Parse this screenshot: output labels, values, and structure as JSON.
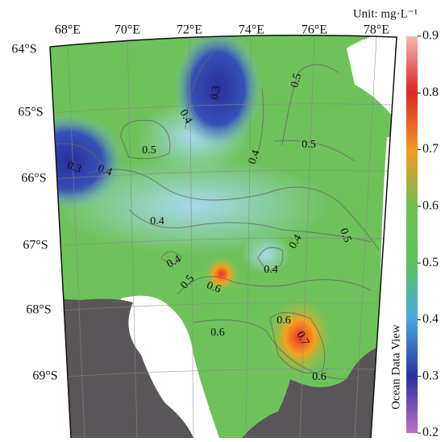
{
  "map": {
    "unit": "Unit: mg·L⁻¹",
    "brand": "Ocean Data View",
    "lon_labels": [
      "68°E",
      "70°E",
      "72°E",
      "74°E",
      "76°E",
      "78°E"
    ],
    "lat_labels": [
      "64°S",
      "65°S",
      "66°S",
      "67°S",
      "68°S",
      "69°S"
    ],
    "colorbar": {
      "lim": [
        0.2,
        0.9
      ],
      "ticks": [
        0.2,
        0.3,
        0.4,
        0.5,
        0.6,
        0.7,
        0.8,
        0.9
      ]
    },
    "contour_labels": [
      "0.3",
      "0.4",
      "0.4",
      "0.5",
      "0.5",
      "0.5",
      "0.3",
      "0.4",
      "0.4",
      "0.4",
      "0.5",
      "0.6",
      "0.4",
      "0.4",
      "0.5",
      "0.6",
      "0.6",
      "0.7",
      "0.6"
    ]
  }
}
